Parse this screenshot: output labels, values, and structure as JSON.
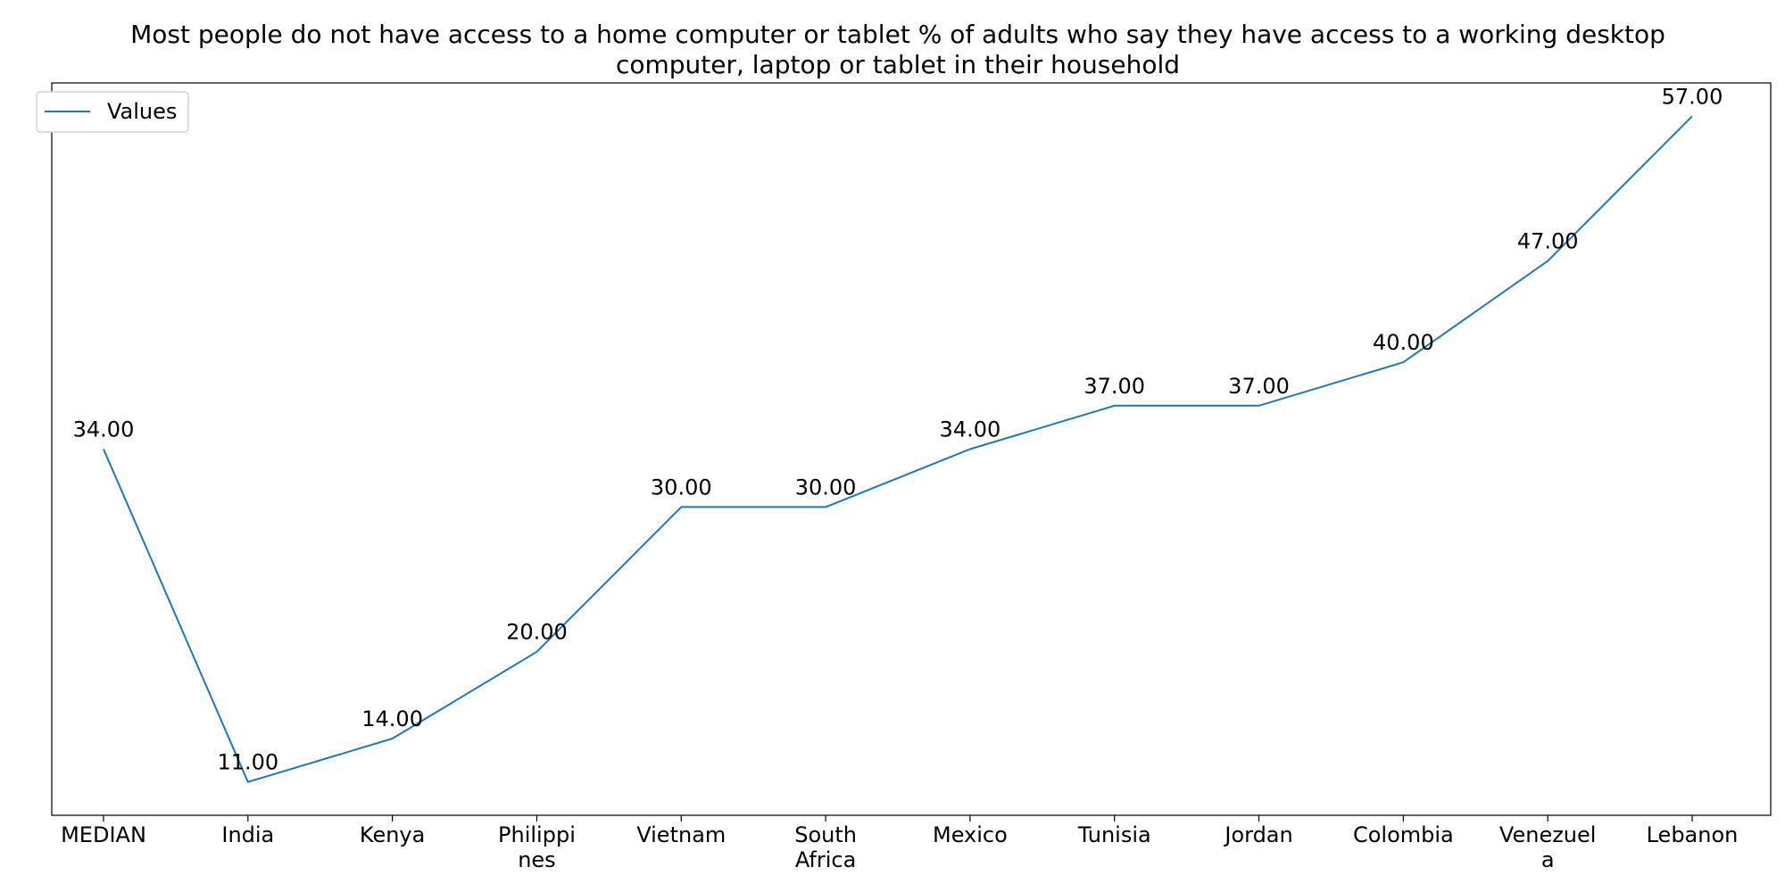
{
  "chart_data": {
    "type": "line",
    "title": "Most people do not have access to a home computer or tablet % of adults who say they have access to a working desktop computer, laptop or tablet in their household",
    "title_lines": [
      "Most people do not have access to a home computer or tablet % of adults who say they have access to a working desktop",
      "computer, laptop or tablet in their household"
    ],
    "xlabel": "",
    "ylabel": "",
    "categories": [
      "MEDIAN",
      "India",
      "Kenya",
      "Philippines",
      "Vietnam",
      "South Africa",
      "Mexico",
      "Tunisia",
      "Jordan",
      "Colombia",
      "Venezuela",
      "Lebanon"
    ],
    "category_label_lines": [
      [
        "MEDIAN"
      ],
      [
        "India"
      ],
      [
        "Kenya"
      ],
      [
        "Philippi",
        "nes"
      ],
      [
        "Vietnam"
      ],
      [
        "South",
        "Africa"
      ],
      [
        "Mexico"
      ],
      [
        "Tunisia"
      ],
      [
        "Jordan"
      ],
      [
        "Colombia"
      ],
      [
        "Venezuel",
        "a"
      ],
      [
        "Lebanon"
      ]
    ],
    "series": [
      {
        "name": "Values",
        "values": [
          34,
          11,
          14,
          20,
          30,
          30,
          34,
          37,
          37,
          40,
          47,
          57
        ],
        "value_labels": [
          "34.00",
          "11.00",
          "14.00",
          "20.00",
          "30.00",
          "30.00",
          "34.00",
          "37.00",
          "37.00",
          "40.00",
          "47.00",
          "57.00"
        ],
        "color": "#1f77b4"
      }
    ],
    "ylim": [
      8.7,
      59.3
    ],
    "y_ticks_visible": false,
    "grid": false,
    "legend_position": "upper-left"
  }
}
